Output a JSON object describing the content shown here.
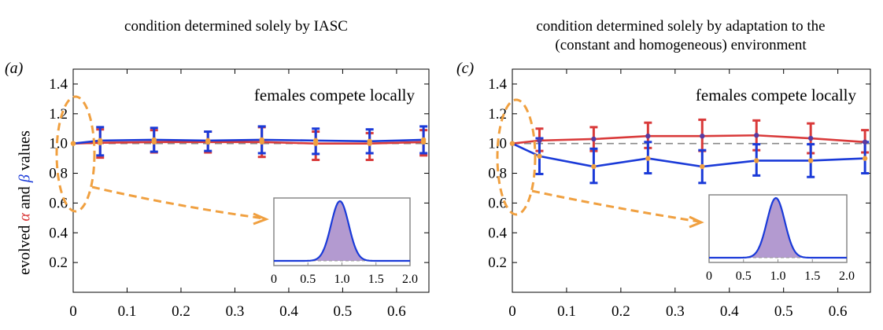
{
  "y_axis_label": {
    "prefix": "evolved ",
    "alpha": "α",
    "middle": " and ",
    "beta": "β",
    "suffix": " values"
  },
  "colors": {
    "alpha": "#d93a3a",
    "beta": "#1a3ad8",
    "point": "#f0a040",
    "fill": "#b39ad0",
    "annotation": "#f0a040",
    "ref": "#888888"
  },
  "chart_data": [
    {
      "type": "line",
      "panel": "(a)",
      "title": "condition determined solely by IASC",
      "annotation": "females compete locally",
      "x": [
        0.0,
        0.05,
        0.15,
        0.25,
        0.35,
        0.45,
        0.55,
        0.65
      ],
      "xlim": [
        0,
        0.66
      ],
      "ylim": [
        0,
        1.5
      ],
      "x_ticks": [
        "0",
        "0.1",
        "0.2",
        "0.3",
        "0.4",
        "0.5",
        "0.6"
      ],
      "y_ticks": [
        "0.2",
        "0.4",
        "0.6",
        "0.8",
        "1.0",
        "1.2",
        "1.4"
      ],
      "reference_line": 1.0,
      "grid": false,
      "series": [
        {
          "key": "alpha",
          "values": [
            1.0,
            1.005,
            1.01,
            1.01,
            1.01,
            1.0,
            1.0,
            1.01
          ],
          "err_low": [
            0,
            0.1,
            0.07,
            0.07,
            0.1,
            0.11,
            0.11,
            0.09
          ],
          "err_high": [
            0,
            0.09,
            0.08,
            0.07,
            0.1,
            0.08,
            0.07,
            0.08
          ]
        },
        {
          "key": "beta",
          "values": [
            1.0,
            1.02,
            1.025,
            1.02,
            1.025,
            1.02,
            1.015,
            1.025
          ],
          "err_low": [
            0,
            0.1,
            0.08,
            0.07,
            0.09,
            0.09,
            0.08,
            0.09
          ],
          "err_high": [
            0,
            0.09,
            0.08,
            0.06,
            0.09,
            0.08,
            0.08,
            0.09
          ]
        }
      ],
      "inset": {
        "type": "area",
        "x_ticks": [
          "0",
          "0.5",
          "1.0",
          "1.5",
          "2.0"
        ],
        "xlim": [
          0,
          2.0
        ],
        "peak_x": 0.97,
        "sd": 0.13
      }
    },
    {
      "type": "line",
      "panel": "(c)",
      "title_lines": [
        "condition determined solely by adaptation to the",
        "(constant and homogeneous) environment"
      ],
      "annotation": "females compete locally",
      "x": [
        0.0,
        0.05,
        0.15,
        0.25,
        0.35,
        0.45,
        0.55,
        0.65
      ],
      "xlim": [
        0,
        0.66
      ],
      "ylim": [
        0,
        1.5
      ],
      "x_ticks": [
        "0",
        "0.1",
        "0.2",
        "0.3",
        "0.4",
        "0.5",
        "0.6"
      ],
      "y_ticks": [
        "0.2",
        "0.4",
        "0.6",
        "0.8",
        "1.0",
        "1.2",
        "1.4"
      ],
      "reference_line": 1.0,
      "grid": false,
      "series": [
        {
          "key": "alpha",
          "values": [
            1.0,
            1.02,
            1.03,
            1.05,
            1.05,
            1.055,
            1.035,
            1.01
          ],
          "err_low": [
            0,
            0.07,
            0.08,
            0.08,
            0.1,
            0.1,
            0.1,
            0.07
          ],
          "err_high": [
            0,
            0.08,
            0.08,
            0.09,
            0.11,
            0.1,
            0.1,
            0.08
          ]
        },
        {
          "key": "beta",
          "values": [
            1.0,
            0.915,
            0.845,
            0.9,
            0.845,
            0.885,
            0.885,
            0.9
          ],
          "err_low": [
            0,
            0.12,
            0.11,
            0.1,
            0.11,
            0.1,
            0.11,
            0.1
          ],
          "err_high": [
            0,
            0.12,
            0.12,
            0.11,
            0.11,
            0.11,
            0.11,
            0.11
          ]
        }
      ],
      "inset": {
        "type": "area",
        "x_ticks": [
          "0",
          "0.5",
          "1.0",
          "1.5",
          "2.0"
        ],
        "xlim": [
          0,
          2.0
        ],
        "peak_x": 0.97,
        "sd": 0.13
      }
    }
  ]
}
